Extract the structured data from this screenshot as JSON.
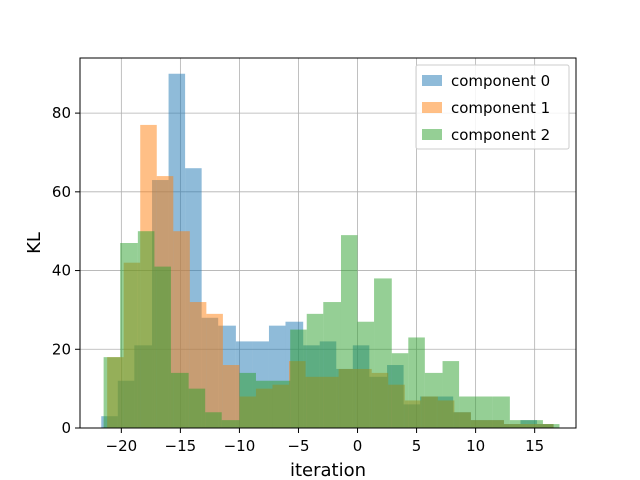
{
  "chart_data": {
    "type": "histogram",
    "xlabel": "iteration",
    "ylabel": "KL",
    "xlim": [
      -23.5,
      18.5
    ],
    "ylim": [
      0,
      94
    ],
    "xticks": [
      -20,
      -15,
      -10,
      -5,
      0,
      5,
      10,
      15
    ],
    "yticks": [
      0,
      20,
      40,
      60,
      80
    ],
    "grid": true,
    "legend_position": "top-right",
    "series": [
      {
        "name": "component 0",
        "color": "#1f77b4",
        "bins": [
          {
            "x0": -21.7,
            "x1": -20.3,
            "value": 3
          },
          {
            "x0": -20.3,
            "x1": -18.9,
            "value": 12
          },
          {
            "x0": -18.9,
            "x1": -17.4,
            "value": 21
          },
          {
            "x0": -17.4,
            "x1": -16.0,
            "value": 63
          },
          {
            "x0": -16.0,
            "x1": -14.6,
            "value": 90
          },
          {
            "x0": -14.6,
            "x1": -13.2,
            "value": 66
          },
          {
            "x0": -13.2,
            "x1": -11.8,
            "value": 28
          },
          {
            "x0": -11.8,
            "x1": -10.3,
            "value": 26
          },
          {
            "x0": -10.3,
            "x1": -8.9,
            "value": 22
          },
          {
            "x0": -8.9,
            "x1": -7.5,
            "value": 22
          },
          {
            "x0": -7.5,
            "x1": -6.1,
            "value": 26
          },
          {
            "x0": -6.1,
            "x1": -4.6,
            "value": 27
          },
          {
            "x0": -4.6,
            "x1": -3.2,
            "value": 21
          },
          {
            "x0": -3.2,
            "x1": -1.8,
            "value": 22
          },
          {
            "x0": -1.8,
            "x1": -0.4,
            "value": 15
          },
          {
            "x0": -0.4,
            "x1": 1.0,
            "value": 21
          },
          {
            "x0": 1.0,
            "x1": 2.5,
            "value": 13
          },
          {
            "x0": 2.5,
            "x1": 3.9,
            "value": 16
          },
          {
            "x0": 3.9,
            "x1": 5.3,
            "value": 6
          },
          {
            "x0": 5.3,
            "x1": 6.7,
            "value": 8
          },
          {
            "x0": 6.7,
            "x1": 8.1,
            "value": 8
          },
          {
            "x0": 8.1,
            "x1": 9.6,
            "value": 4
          },
          {
            "x0": 9.6,
            "x1": 11.0,
            "value": 2
          },
          {
            "x0": 11.0,
            "x1": 12.4,
            "value": 2
          },
          {
            "x0": 12.4,
            "x1": 13.8,
            "value": 1
          },
          {
            "x0": 13.8,
            "x1": 15.2,
            "value": 2
          },
          {
            "x0": 15.2,
            "x1": 16.6,
            "value": 1
          }
        ]
      },
      {
        "name": "component 1",
        "color": "#ff7f0e",
        "bins": [
          {
            "x0": -21.2,
            "x1": -19.8,
            "value": 18
          },
          {
            "x0": -19.8,
            "x1": -18.4,
            "value": 42
          },
          {
            "x0": -18.4,
            "x1": -17.0,
            "value": 77
          },
          {
            "x0": -17.0,
            "x1": -15.6,
            "value": 64
          },
          {
            "x0": -15.6,
            "x1": -14.2,
            "value": 50
          },
          {
            "x0": -14.2,
            "x1": -12.8,
            "value": 32
          },
          {
            "x0": -12.8,
            "x1": -11.4,
            "value": 29
          },
          {
            "x0": -11.4,
            "x1": -10.0,
            "value": 16
          },
          {
            "x0": -10.0,
            "x1": -8.6,
            "value": 8
          },
          {
            "x0": -8.6,
            "x1": -7.2,
            "value": 10
          },
          {
            "x0": -7.2,
            "x1": -5.8,
            "value": 11
          },
          {
            "x0": -5.8,
            "x1": -4.4,
            "value": 17
          },
          {
            "x0": -4.4,
            "x1": -3.0,
            "value": 13
          },
          {
            "x0": -3.0,
            "x1": -1.6,
            "value": 13
          },
          {
            "x0": -1.6,
            "x1": -0.2,
            "value": 15
          },
          {
            "x0": -0.2,
            "x1": 1.2,
            "value": 15
          },
          {
            "x0": 1.2,
            "x1": 2.6,
            "value": 14
          },
          {
            "x0": 2.6,
            "x1": 4.0,
            "value": 11
          },
          {
            "x0": 4.0,
            "x1": 5.4,
            "value": 7
          },
          {
            "x0": 5.4,
            "x1": 6.8,
            "value": 8
          },
          {
            "x0": 6.8,
            "x1": 8.2,
            "value": 7
          },
          {
            "x0": 8.2,
            "x1": 9.6,
            "value": 4
          },
          {
            "x0": 9.6,
            "x1": 11.0,
            "value": 2
          },
          {
            "x0": 11.0,
            "x1": 12.4,
            "value": 2
          },
          {
            "x0": 12.4,
            "x1": 13.8,
            "value": 1
          },
          {
            "x0": 13.8,
            "x1": 15.2,
            "value": 1
          },
          {
            "x0": 15.2,
            "x1": 16.6,
            "value": 1
          }
        ]
      },
      {
        "name": "component 2",
        "color": "#2ca02c",
        "bins": [
          {
            "x0": -21.5,
            "x1": -20.1,
            "value": 18
          },
          {
            "x0": -20.1,
            "x1": -18.6,
            "value": 47
          },
          {
            "x0": -18.6,
            "x1": -17.2,
            "value": 50
          },
          {
            "x0": -17.2,
            "x1": -15.8,
            "value": 41
          },
          {
            "x0": -15.8,
            "x1": -14.3,
            "value": 14
          },
          {
            "x0": -14.3,
            "x1": -12.9,
            "value": 10
          },
          {
            "x0": -12.9,
            "x1": -11.5,
            "value": 4
          },
          {
            "x0": -11.5,
            "x1": -10.0,
            "value": 2
          },
          {
            "x0": -10.0,
            "x1": -8.6,
            "value": 14
          },
          {
            "x0": -8.6,
            "x1": -7.2,
            "value": 12
          },
          {
            "x0": -7.2,
            "x1": -5.7,
            "value": 12
          },
          {
            "x0": -5.7,
            "x1": -4.3,
            "value": 25
          },
          {
            "x0": -4.3,
            "x1": -2.9,
            "value": 29
          },
          {
            "x0": -2.9,
            "x1": -1.4,
            "value": 32
          },
          {
            "x0": -1.4,
            "x1": 0.0,
            "value": 49
          },
          {
            "x0": 0.0,
            "x1": 1.4,
            "value": 27
          },
          {
            "x0": 1.4,
            "x1": 2.9,
            "value": 38
          },
          {
            "x0": 2.9,
            "x1": 4.3,
            "value": 19
          },
          {
            "x0": 4.3,
            "x1": 5.7,
            "value": 23
          },
          {
            "x0": 5.7,
            "x1": 7.2,
            "value": 14
          },
          {
            "x0": 7.2,
            "x1": 8.6,
            "value": 17
          },
          {
            "x0": 8.6,
            "x1": 10.0,
            "value": 8
          },
          {
            "x0": 10.0,
            "x1": 11.4,
            "value": 8
          },
          {
            "x0": 11.4,
            "x1": 12.9,
            "value": 8
          },
          {
            "x0": 12.9,
            "x1": 14.3,
            "value": 2
          },
          {
            "x0": 14.3,
            "x1": 15.7,
            "value": 2
          },
          {
            "x0": 15.7,
            "x1": 17.1,
            "value": 1
          }
        ]
      }
    ]
  }
}
